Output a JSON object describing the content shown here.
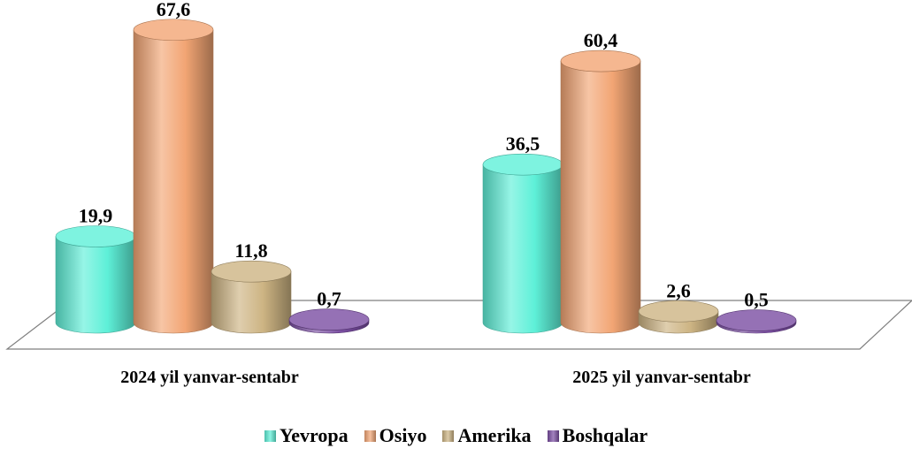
{
  "chart_data": {
    "type": "bar",
    "style": "3d-cylinder",
    "categories": [
      "2024 yil yanvar-sentabr",
      "2025 yil yanvar-sentabr"
    ],
    "series": [
      {
        "name": "Yevropa",
        "values": [
          19.9,
          36.5
        ],
        "labels": [
          "19,9",
          "36,5"
        ],
        "color": "#5ef0d8"
      },
      {
        "name": "Osiyo",
        "values": [
          67.6,
          60.4
        ],
        "labels": [
          "67,6",
          "60,4"
        ],
        "color": "#f2a574"
      },
      {
        "name": "Amerika",
        "values": [
          11.8,
          2.6
        ],
        "labels": [
          "11,8",
          "2,6"
        ],
        "color": "#cdb483"
      },
      {
        "name": "Boshqalar",
        "values": [
          0.7,
          0.5
        ],
        "labels": [
          "0,7",
          "0,5"
        ],
        "color": "#7b4ea3"
      }
    ],
    "legend_position": "bottom",
    "grid": false
  }
}
